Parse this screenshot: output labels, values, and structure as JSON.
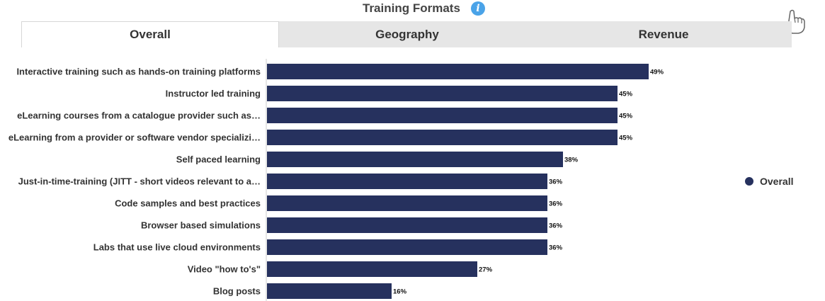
{
  "header": {
    "title": "Training Formats"
  },
  "tabs": [
    {
      "label": "Overall",
      "active": true
    },
    {
      "label": "Geography",
      "active": false
    },
    {
      "label": "Revenue",
      "active": false
    }
  ],
  "legend": {
    "label": "Overall",
    "color": "#26315e"
  },
  "icons": {
    "info": "info-icon",
    "cursor": "pointing-hand-icon"
  },
  "chart_data": {
    "type": "bar",
    "orientation": "horizontal",
    "categories": [
      "Interactive training such as hands-on training platforms",
      "Instructor led training",
      "eLearning courses from a catalogue provider such as…",
      "eLearning from a provider or software vendor specializi…",
      "Self paced learning",
      "Just-in-time-training (JITT - short videos relevant to a…",
      "Code samples and best practices",
      "Browser based simulations",
      "Labs that use live cloud environments",
      "Video \"how to's\"",
      "Blog posts"
    ],
    "series": [
      {
        "name": "Overall",
        "values": [
          49,
          45,
          45,
          45,
          38,
          36,
          36,
          36,
          36,
          27,
          16
        ],
        "color": "#26315e"
      }
    ],
    "data_labels": [
      "49%",
      "45%",
      "45%",
      "45%",
      "38%",
      "36%",
      "36%",
      "36%",
      "36%",
      "27%",
      "16%"
    ],
    "value_unit": "%",
    "xlim": [
      0,
      100
    ],
    "grid": false,
    "legend_position": "right"
  }
}
